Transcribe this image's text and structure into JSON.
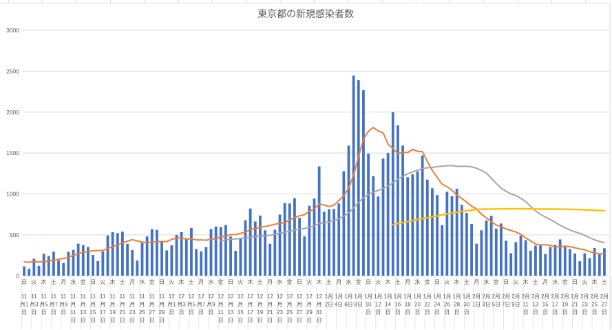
{
  "colors": {
    "bar": "#4472C4",
    "line_orange": "#ED7D31",
    "line_gray": "#A5A5A5",
    "line_yellow": "#FFC000",
    "gridline": "#D9D9D9",
    "category_divider": "#E4E4E4",
    "axis_text": "#595959",
    "title_text": "#595959"
  },
  "chart_data": {
    "type": "bar",
    "title": "東京都の新規感染者数",
    "grid": "horizontal",
    "ylim": [
      0,
      3000
    ],
    "yticks": [
      0,
      500,
      1000,
      1500,
      2000,
      2500,
      3000
    ],
    "n_days": 119,
    "first_label": "日 11月1日",
    "last_label": "土 2月27日",
    "x_label_interval_days": 2,
    "series": [
      {
        "name": "daily-new-cases",
        "type": "bar",
        "color": "#4472C4",
        "start_index": 0,
        "values": [
          116,
          87,
          209,
          122,
          269,
          242,
          294,
          189,
          157,
          293,
          317,
          393,
          374,
          352,
          255,
          180,
          298,
          493,
          534,
          522,
          539,
          391,
          314,
          186,
          401,
          481,
          570,
          561,
          418,
          311,
          372,
          500,
          533,
          449,
          584,
          327,
          299,
          352,
          572,
          602,
          595,
          621,
          480,
          305,
          460,
          678,
          822,
          664,
          736,
          556,
          392,
          563,
          748,
          888,
          884,
          949,
          708,
          481,
          856,
          944,
          1337,
          783,
          814,
          816,
          884,
          1278,
          1591,
          2447,
          2392,
          2268,
          1494,
          1219,
          970,
          1433,
          1502,
          2001,
          1839,
          1592,
          1204,
          1240,
          1274,
          1471,
          1175,
          1070,
          986,
          618,
          1026,
          973,
          1064,
          868,
          769,
          633,
          393,
          556,
          676,
          734,
          577,
          639,
          429,
          276,
          412,
          491,
          434,
          307,
          369,
          371,
          266,
          350,
          378,
          445,
          353,
          327,
          272,
          178,
          275,
          213,
          340,
          270,
          337
        ]
      },
      {
        "name": "moving-average-7day-orange",
        "type": "line",
        "color": "#ED7D31",
        "start_index": 0,
        "values": [
          169,
          167,
          175,
          168,
          174,
          180,
          191,
          202,
          212,
          224,
          252,
          269,
          288,
          296,
          306,
          309,
          310,
          335,
          355,
          376,
          403,
          422,
          442,
          426,
          412,
          405,
          412,
          415,
          419,
          418,
          445,
          459,
          466,
          449,
          452,
          439,
          438,
          435,
          445,
          455,
          476,
          481,
          503,
          504,
          519,
          534,
          566,
          576,
          592,
          603,
          615,
          630,
          640,
          650,
          681,
          711,
          733,
          746,
          788,
          816,
          880,
          865,
          846,
          862,
          919,
          979,
          1072,
          1230,
          1460,
          1668,
          1765,
          1813,
          1769,
          1746,
          1611,
          1555,
          1494,
          1508,
          1506,
          1544,
          1522,
          1517,
          1399,
          1289,
          1203,
          1119,
          1089,
          1046,
          987,
          944,
          901,
          850,
          818,
          751,
          708,
          661,
          620,
          601,
          572,
          555,
          535,
          508,
          465,
          427,
          388,
          380,
          379,
          370,
          354,
          355,
          362,
          356,
          342,
          329,
          318,
          295,
          280,
          268,
          269
        ]
      },
      {
        "name": "moving-average-28day-gray",
        "type": "line",
        "color": "#A5A5A5",
        "start_index": 40,
        "values": [
          428,
          438,
          446,
          450,
          456,
          463,
          473,
          478,
          485,
          491,
          494,
          507,
          520,
          534,
          545,
          559,
          570,
          576,
          593,
          609,
          638,
          650,
          658,
          675,
          696,
          729,
          766,
          831,
          896,
          954,
          991,
          1023,
          1042,
          1068,
          1093,
          1140,
          1180,
          1217,
          1246,
          1270,
          1289,
          1310,
          1320,
          1324,
          1334,
          1339,
          1345,
          1346,
          1337,
          1340,
          1338,
          1332,
          1314,
          1288,
          1255,
          1194,
          1129,
          1071,
          1033,
          1000,
          980,
          946,
          908,
          847,
          795,
          751,
          718,
          686,
          654,
          617,
          588,
          561,
          536,
          520,
          493,
          466,
          440,
          419,
          404
        ]
      },
      {
        "name": "reference-curve-yellow",
        "type": "line",
        "color": "#FFC000",
        "start_index": 75,
        "values": [
          625,
          638,
          651,
          663,
          675,
          687,
          698,
          710,
          721,
          732,
          744,
          755,
          766,
          776,
          786,
          795,
          803,
          810,
          813,
          815,
          816,
          817,
          817,
          818,
          818,
          818,
          818,
          818,
          817,
          817,
          816,
          816,
          815,
          815,
          814,
          813,
          812,
          810,
          808,
          806,
          804,
          801,
          798,
          795
        ]
      }
    ],
    "x_labels": [
      {
        "dow": "日",
        "lines": [
          "11",
          "月1",
          "日"
        ]
      },
      {
        "dow": "火",
        "lines": [
          "11",
          "月3",
          "日"
        ]
      },
      {
        "dow": "木",
        "lines": [
          "11",
          "月5",
          "日"
        ]
      },
      {
        "dow": "土",
        "lines": [
          "11",
          "月7",
          "日"
        ]
      },
      {
        "dow": "月",
        "lines": [
          "11",
          "月9",
          "日"
        ]
      },
      {
        "dow": "水",
        "lines": [
          "11",
          "月",
          "11",
          "日"
        ]
      },
      {
        "dow": "金",
        "lines": [
          "11",
          "月",
          "13",
          "日"
        ]
      },
      {
        "dow": "日",
        "lines": [
          "11",
          "月",
          "15",
          "日"
        ]
      },
      {
        "dow": "火",
        "lines": [
          "11",
          "月",
          "17",
          "日"
        ]
      },
      {
        "dow": "木",
        "lines": [
          "11",
          "月",
          "19",
          "日"
        ]
      },
      {
        "dow": "土",
        "lines": [
          "11",
          "月",
          "21",
          "日"
        ]
      },
      {
        "dow": "月",
        "lines": [
          "11",
          "月",
          "23",
          "日"
        ]
      },
      {
        "dow": "水",
        "lines": [
          "11",
          "月",
          "25",
          "日"
        ]
      },
      {
        "dow": "金",
        "lines": [
          "11",
          "月",
          "27",
          "日"
        ]
      },
      {
        "dow": "日",
        "lines": [
          "11",
          "月",
          "29",
          "日"
        ]
      },
      {
        "dow": "火",
        "lines": [
          "12",
          "月1",
          "日"
        ]
      },
      {
        "dow": "木",
        "lines": [
          "12",
          "月3",
          "日"
        ]
      },
      {
        "dow": "土",
        "lines": [
          "12",
          "月5",
          "日"
        ]
      },
      {
        "dow": "月",
        "lines": [
          "12",
          "月7",
          "日"
        ]
      },
      {
        "dow": "水",
        "lines": [
          "12",
          "月9",
          "日"
        ]
      },
      {
        "dow": "金",
        "lines": [
          "12",
          "月",
          "11",
          "日"
        ]
      },
      {
        "dow": "日",
        "lines": [
          "12",
          "月",
          "13",
          "日"
        ]
      },
      {
        "dow": "火",
        "lines": [
          "12",
          "月",
          "15",
          "日"
        ]
      },
      {
        "dow": "木",
        "lines": [
          "12",
          "月",
          "17",
          "日"
        ]
      },
      {
        "dow": "土",
        "lines": [
          "12",
          "月",
          "19",
          "日"
        ]
      },
      {
        "dow": "月",
        "lines": [
          "12",
          "月",
          "21",
          "日"
        ]
      },
      {
        "dow": "水",
        "lines": [
          "12",
          "月",
          "23",
          "日"
        ]
      },
      {
        "dow": "金",
        "lines": [
          "12",
          "月",
          "25",
          "日"
        ]
      },
      {
        "dow": "日",
        "lines": [
          "12",
          "月",
          "27",
          "日"
        ]
      },
      {
        "dow": "火",
        "lines": [
          "12",
          "月",
          "29",
          "日"
        ]
      },
      {
        "dow": "木",
        "lines": [
          "12",
          "月",
          "31",
          "日"
        ]
      },
      {
        "dow": "土",
        "lines": [
          "1月",
          "2日"
        ]
      },
      {
        "dow": "月",
        "lines": [
          "1月",
          "4日"
        ]
      },
      {
        "dow": "水",
        "lines": [
          "1月",
          "6日"
        ]
      },
      {
        "dow": "金",
        "lines": [
          "1月",
          "8日"
        ]
      },
      {
        "dow": "日",
        "lines": [
          "1月",
          "10",
          "日"
        ]
      },
      {
        "dow": "火",
        "lines": [
          "1月",
          "12",
          "日"
        ]
      },
      {
        "dow": "木",
        "lines": [
          "1月",
          "14",
          "日"
        ]
      },
      {
        "dow": "土",
        "lines": [
          "1月",
          "16",
          "日"
        ]
      },
      {
        "dow": "月",
        "lines": [
          "1月",
          "18",
          "日"
        ]
      },
      {
        "dow": "水",
        "lines": [
          "1月",
          "20",
          "日"
        ]
      },
      {
        "dow": "金",
        "lines": [
          "1月",
          "22",
          "日"
        ]
      },
      {
        "dow": "日",
        "lines": [
          "1月",
          "24",
          "日"
        ]
      },
      {
        "dow": "火",
        "lines": [
          "1月",
          "26",
          "日"
        ]
      },
      {
        "dow": "木",
        "lines": [
          "1月",
          "28",
          "日"
        ]
      },
      {
        "dow": "土",
        "lines": [
          "1月",
          "30",
          "日"
        ]
      },
      {
        "dow": "月",
        "lines": [
          "2月",
          "1日"
        ]
      },
      {
        "dow": "水",
        "lines": [
          "2月",
          "3日"
        ]
      },
      {
        "dow": "金",
        "lines": [
          "2月",
          "5日"
        ]
      },
      {
        "dow": "日",
        "lines": [
          "2月",
          "7日"
        ]
      },
      {
        "dow": "火",
        "lines": [
          "2月",
          "9日"
        ]
      },
      {
        "dow": "木",
        "lines": [
          "2月",
          "11",
          "日"
        ]
      },
      {
        "dow": "土",
        "lines": [
          "2月",
          "13",
          "日"
        ]
      },
      {
        "dow": "月",
        "lines": [
          "2月",
          "15",
          "日"
        ]
      },
      {
        "dow": "水",
        "lines": [
          "2月",
          "17",
          "日"
        ]
      },
      {
        "dow": "金",
        "lines": [
          "2月",
          "19",
          "日"
        ]
      },
      {
        "dow": "日",
        "lines": [
          "2月",
          "21",
          "日"
        ]
      },
      {
        "dow": "火",
        "lines": [
          "2月",
          "23",
          "日"
        ]
      },
      {
        "dow": "木",
        "lines": [
          "2月",
          "25",
          "日"
        ]
      },
      {
        "dow": "土",
        "lines": [
          "2月",
          "27",
          "日"
        ]
      }
    ]
  }
}
